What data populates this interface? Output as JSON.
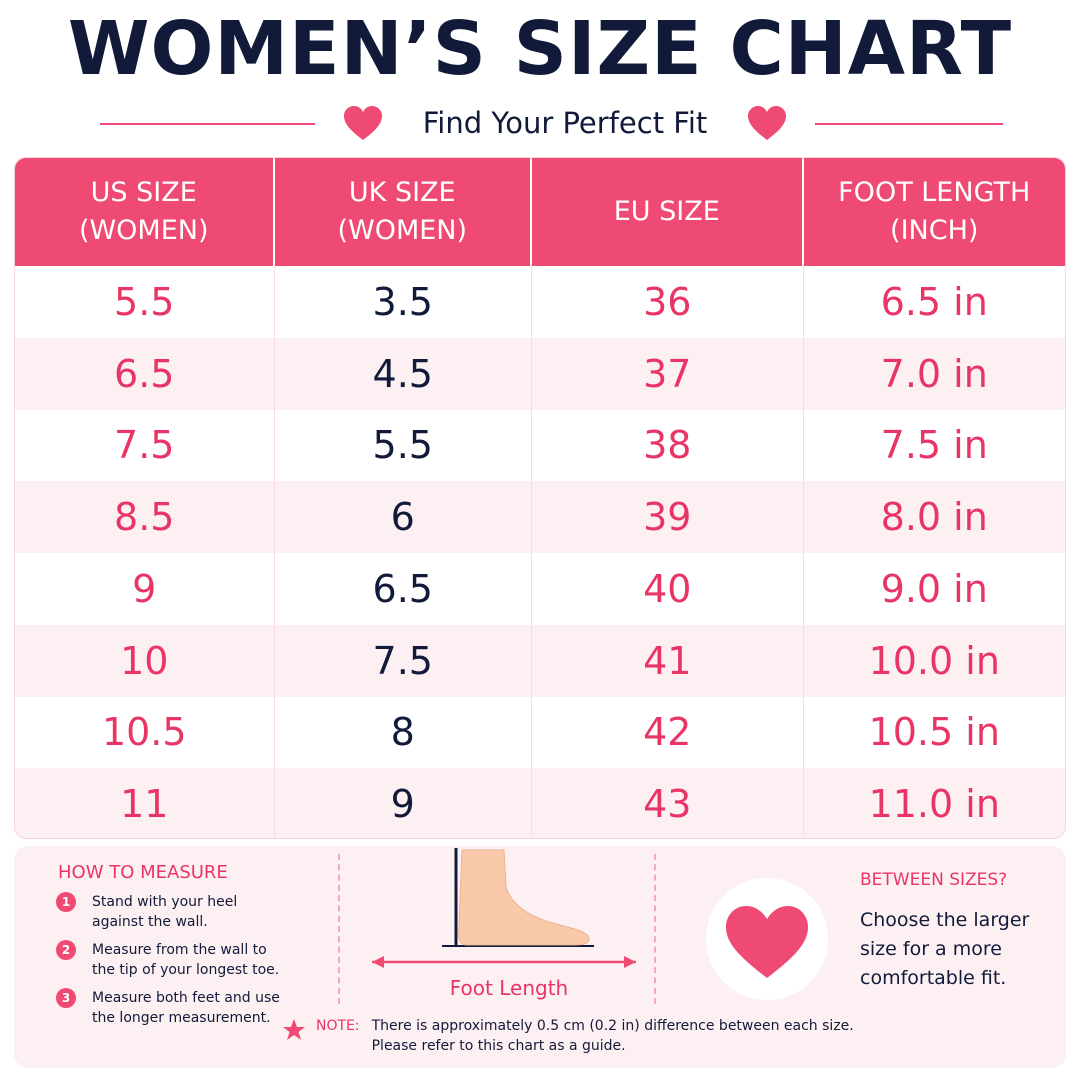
{
  "title": "WOMEN’S SIZE CHART",
  "subtitle": "Find Your Perfect Fit",
  "colors": {
    "accent": "#ee4a74",
    "dark": "#121a3a",
    "row_alt": "#fdf0f3"
  },
  "table": {
    "headers": [
      "US SIZE\n(WOMEN)",
      "UK SIZE\n(WOMEN)",
      "EU SIZE",
      "FOOT LENGTH\n(INCH)"
    ],
    "rows": [
      [
        "5.5",
        "3.5",
        "36",
        "6.5 in"
      ],
      [
        "6.5",
        "4.5",
        "37",
        "7.0 in"
      ],
      [
        "7.5",
        "5.5",
        "38",
        "7.5 in"
      ],
      [
        "8.5",
        "6",
        "39",
        "8.0 in"
      ],
      [
        "9",
        "6.5",
        "40",
        "9.0 in"
      ],
      [
        "10",
        "7.5",
        "41",
        "10.0 in"
      ],
      [
        "10.5",
        "8",
        "42",
        "10.5 in"
      ],
      [
        "11",
        "9",
        "43",
        "11.0 in"
      ]
    ]
  },
  "how_to_measure": {
    "title": "HOW TO MEASURE",
    "steps": [
      {
        "num": "1",
        "text": "Stand with your heel against the wall."
      },
      {
        "num": "2",
        "text": "Measure from the wall to the tip of your longest toe."
      },
      {
        "num": "3",
        "text": "Measure both feet and use the longer measurement."
      }
    ]
  },
  "diagram": {
    "label": "Foot Length"
  },
  "between_sizes": {
    "title": "BETWEEN SIZES?",
    "text": "Choose the larger size for a more comfortable fit."
  },
  "note": {
    "label": "NOTE:",
    "line1": "There is approximately 0.5 cm (0.2 in) difference between each size.",
    "line2": "Please refer to this chart as a guide."
  }
}
